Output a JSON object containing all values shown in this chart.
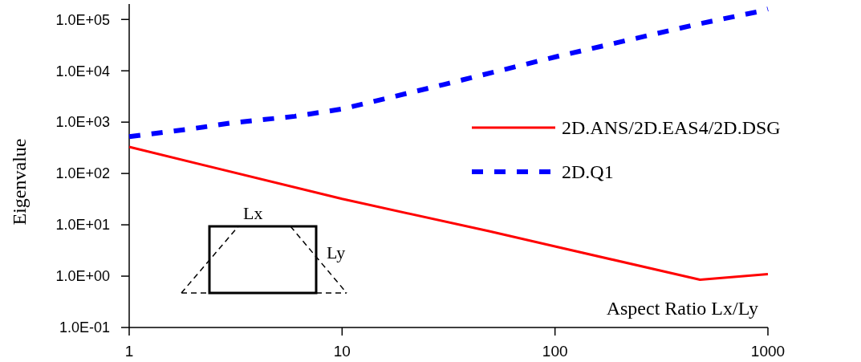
{
  "chart_data": {
    "type": "line",
    "ylabel": "Eigenvalue",
    "xlabel": "Aspect Ratio Lx/Ly",
    "log": "xy",
    "grid": false,
    "legend": "right",
    "xlim": [
      1,
      1000
    ],
    "xticks": [
      1,
      10,
      100,
      1000
    ],
    "ylim": [
      0.1,
      200000
    ],
    "yticks": [
      {
        "value": 0.1,
        "label": "1.0E-01"
      },
      {
        "value": 1,
        "label": "1.0E+00"
      },
      {
        "value": 10,
        "label": "1.0E+01"
      },
      {
        "value": 100,
        "label": "1.0E+02"
      },
      {
        "value": 1000,
        "label": "1.0E+03"
      },
      {
        "value": 10000,
        "label": "1.0E+04"
      },
      {
        "value": 100000,
        "label": "1.0E+05"
      }
    ],
    "annotations": [
      "Lx",
      "Ly"
    ],
    "series": [
      {
        "name": "2D.ANS/2D.EAS4/2D.DSG",
        "color": "#ff0000",
        "line_style": "solid",
        "x": [
          1,
          10,
          49,
          100,
          480,
          1000
        ],
        "values": [
          330,
          32,
          7.5,
          3.8,
          0.85,
          1.1
        ]
      },
      {
        "name": "2D.Q1",
        "color": "#0000ff",
        "line_style": "dashed",
        "x": [
          1,
          2,
          3,
          6,
          10,
          30,
          100,
          182,
          480,
          916,
          1000
        ],
        "values": [
          520,
          750,
          960,
          1300,
          1800,
          5400,
          18600,
          33000,
          83000,
          144000,
          160000
        ]
      }
    ]
  }
}
